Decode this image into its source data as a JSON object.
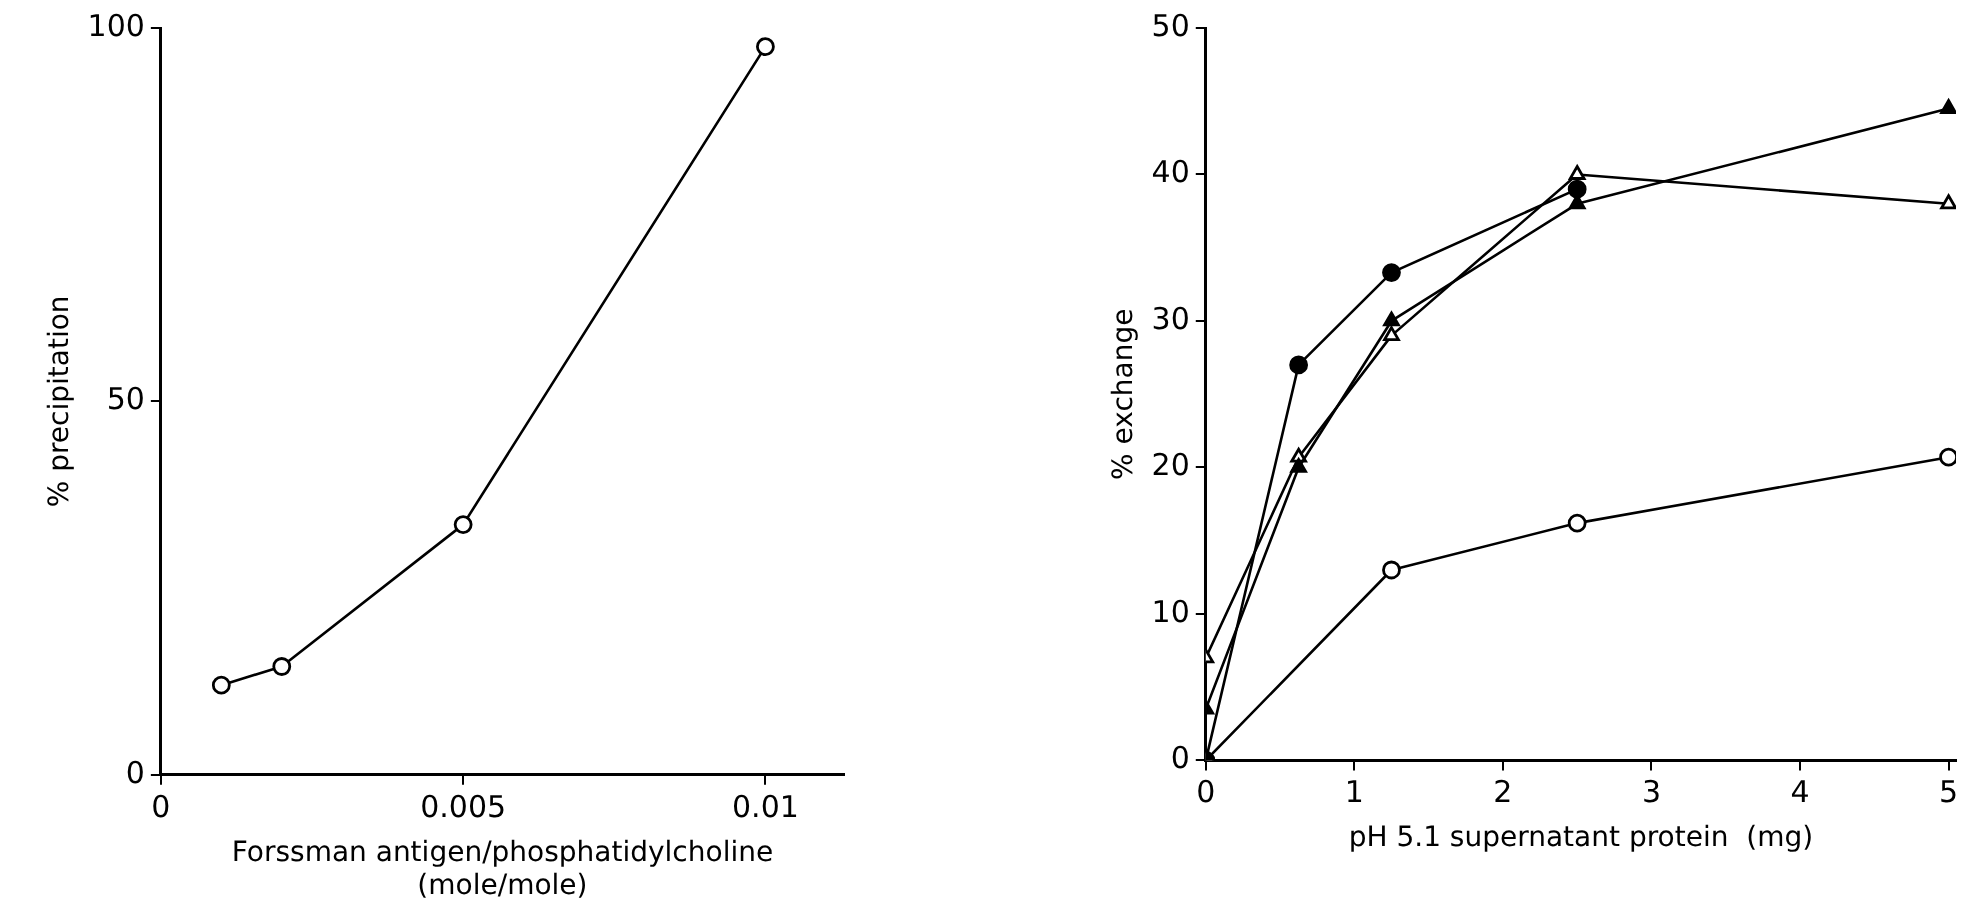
{
  "chart_data": [
    {
      "type": "line",
      "xlabel": "Forssman antigen/phosphatidylcholine\n(mole/mole)",
      "ylabel": "% precipitation",
      "xlim": [
        0,
        0.0113
      ],
      "xticks": [
        0,
        0.005,
        0.01
      ],
      "ylim": [
        0,
        100
      ],
      "yticks": [
        0,
        50,
        100
      ],
      "grid": false,
      "legend": false,
      "series": [
        {
          "color": "#000000",
          "x": [
            0.001,
            0.002,
            0.005,
            0.01
          ],
          "values": [
            12,
            14.5,
            33.5,
            97.5
          ],
          "marker": "circle",
          "colors": [
            "#ffffff",
            "#ffffff",
            "#ffffff",
            "#ffffff"
          ]
        }
      ]
    },
    {
      "type": "line",
      "xlabel": "pH 5.1 supernatant protein  (mg)",
      "ylabel": "% exchange",
      "xlim": [
        0,
        5.05
      ],
      "xticks": [
        0,
        1,
        2,
        3,
        4,
        5
      ],
      "ylim": [
        0,
        50
      ],
      "yticks": [
        0,
        10,
        20,
        30,
        40,
        50
      ],
      "grid": false,
      "legend": false,
      "series": [
        {
          "color": "#000000",
          "x": [
            0,
            0.625,
            1.25,
            2.5
          ],
          "values": [
            0,
            27,
            33.3,
            39
          ],
          "marker": "circle",
          "colors": [
            "#000000",
            "#000000",
            "#000000",
            "#000000"
          ]
        },
        {
          "color": "#000000",
          "x": [
            0,
            0.625,
            1.25,
            2.5,
            5
          ],
          "values": [
            3.5,
            20,
            30,
            38,
            44.5
          ],
          "marker": "triangle",
          "colors": [
            "#000000",
            "#000000",
            "#000000",
            "#000000",
            "#000000"
          ]
        },
        {
          "color": "#000000",
          "x": [
            0,
            0.625,
            1.25,
            2.5,
            5
          ],
          "values": [
            7,
            20.7,
            29,
            40,
            38
          ],
          "marker": "triangle",
          "colors": [
            "#ffffff",
            "#ffffff",
            "#ffffff",
            "#ffffff",
            "#ffffff"
          ]
        },
        {
          "color": "#000000",
          "x": [
            0,
            1.25,
            2.5,
            5
          ],
          "values": [
            0,
            13,
            16.2,
            20.7
          ],
          "marker": "circle",
          "colors": [
            "#ffffff",
            "#ffffff",
            "#ffffff",
            "#ffffff"
          ]
        }
      ]
    }
  ]
}
